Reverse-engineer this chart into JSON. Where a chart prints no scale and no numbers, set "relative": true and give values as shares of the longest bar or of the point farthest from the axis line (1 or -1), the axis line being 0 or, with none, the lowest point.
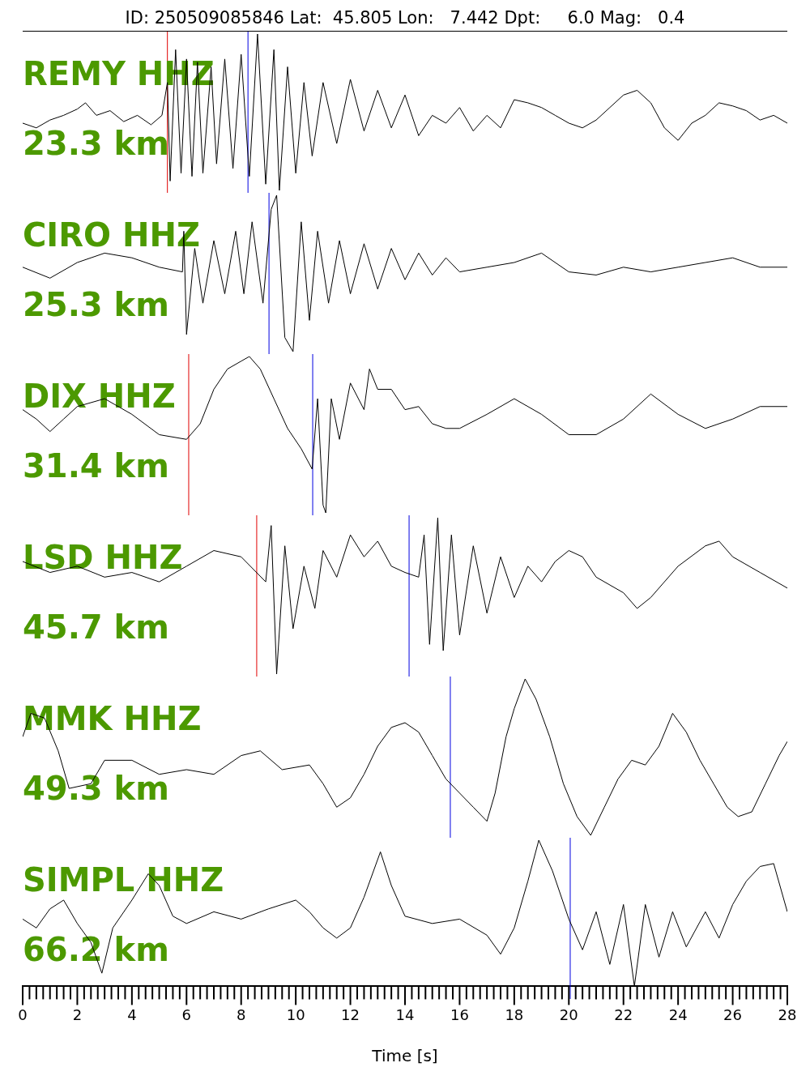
{
  "chart_data": [
    {
      "type": "line",
      "title": "ID: 250509085846 Lat:  45.805 Lon:   7.442 Dpt:     6.0 Mag:   0.4",
      "relative": true,
      "color": "#000000",
      "xlim": [
        0,
        28
      ],
      "tick_labels": false,
      "annotations": [
        "REMY HHZ",
        "23.3 km"
      ],
      "ref_lines": [
        {
          "axis": "x",
          "value": 5.3,
          "color": "#e00000"
        },
        {
          "axis": "x",
          "value": 8.25,
          "color": "#0000e0"
        }
      ],
      "x": [
        0,
        0.5,
        1,
        1.5,
        2,
        2.3,
        2.7,
        3.2,
        3.7,
        4.2,
        4.7,
        5.1,
        5.3,
        5.4,
        5.6,
        5.8,
        6.0,
        6.2,
        6.4,
        6.6,
        6.9,
        7.1,
        7.4,
        7.7,
        8.0,
        8.3,
        8.6,
        8.9,
        9.2,
        9.4,
        9.7,
        10.0,
        10.3,
        10.6,
        11,
        11.5,
        12,
        12.5,
        13,
        13.5,
        14,
        14.5,
        15,
        15.5,
        16,
        16.5,
        17,
        17.5,
        18,
        18.5,
        19,
        19.5,
        20,
        20.5,
        21,
        21.5,
        22,
        22.5,
        23,
        23.5,
        24,
        24.5,
        25,
        25.5,
        26,
        26.5,
        27,
        27.5,
        28
      ],
      "values": [
        0.43,
        0.4,
        0.45,
        0.48,
        0.52,
        0.56,
        0.48,
        0.51,
        0.44,
        0.48,
        0.42,
        0.48,
        0.69,
        0.06,
        0.9,
        0.11,
        0.84,
        0.09,
        0.82,
        0.11,
        0.79,
        0.17,
        0.84,
        0.14,
        0.87,
        0.09,
        1,
        0.04,
        0.9,
        0,
        0.79,
        0.11,
        0.69,
        0.22,
        0.69,
        0.3,
        0.71,
        0.38,
        0.64,
        0.4,
        0.61,
        0.35,
        0.48,
        0.43,
        0.53,
        0.38,
        0.48,
        0.4,
        0.58,
        0.56,
        0.53,
        0.48,
        0.43,
        0.4,
        0.45,
        0.53,
        0.61,
        0.64,
        0.56,
        0.4,
        0.32,
        0.43,
        0.48,
        0.56,
        0.54,
        0.51,
        0.45,
        0.48,
        0.43
      ]
    },
    {
      "type": "line",
      "relative": true,
      "color": "#000000",
      "xlim": [
        0,
        28
      ],
      "tick_labels": false,
      "annotations": [
        "CIRO HHZ",
        "25.3 km"
      ],
      "ref_lines": [
        {
          "axis": "x",
          "value": 9.02,
          "color": "#0000e0"
        }
      ],
      "x": [
        0,
        1,
        2,
        3,
        4,
        5,
        5.85,
        5.9,
        6.0,
        6.3,
        6.6,
        7,
        7.4,
        7.8,
        8.1,
        8.4,
        8.8,
        9.1,
        9.3,
        9.6,
        9.9,
        10.2,
        10.5,
        10.8,
        11.2,
        11.6,
        12,
        12.5,
        13,
        13.5,
        14,
        14.5,
        15,
        15.5,
        16,
        17,
        18,
        19,
        20,
        21,
        22,
        23,
        24,
        25,
        26,
        27,
        28
      ],
      "values": [
        0.54,
        0.47,
        0.57,
        0.63,
        0.6,
        0.54,
        0.51,
        0.77,
        0.11,
        0.66,
        0.31,
        0.71,
        0.37,
        0.77,
        0.37,
        0.83,
        0.31,
        0.91,
        1,
        0.09,
        0,
        0.83,
        0.2,
        0.77,
        0.31,
        0.71,
        0.37,
        0.69,
        0.4,
        0.66,
        0.46,
        0.63,
        0.49,
        0.6,
        0.51,
        0.54,
        0.57,
        0.63,
        0.51,
        0.49,
        0.54,
        0.51,
        0.54,
        0.57,
        0.6,
        0.54,
        0.54
      ]
    },
    {
      "type": "line",
      "relative": true,
      "color": "#000000",
      "xlim": [
        0,
        28
      ],
      "tick_labels": false,
      "annotations": [
        "DIX HHZ",
        "31.4 km"
      ],
      "ref_lines": [
        {
          "axis": "x",
          "value": 6.08,
          "color": "#e00000"
        },
        {
          "axis": "x",
          "value": 10.62,
          "color": "#0000e0"
        }
      ],
      "x": [
        0,
        0.5,
        1,
        1.5,
        2,
        3,
        4,
        5,
        6,
        6.5,
        7,
        7.5,
        8,
        8.3,
        8.7,
        9.2,
        9.7,
        10.2,
        10.6,
        10.8,
        11.0,
        11.1,
        11.3,
        11.6,
        12,
        12.5,
        12.7,
        13,
        13.5,
        14,
        14.5,
        15,
        15.5,
        16,
        17,
        18,
        19,
        20,
        21,
        22,
        23,
        24,
        25,
        26,
        27,
        28
      ],
      "values": [
        0.66,
        0.6,
        0.52,
        0.6,
        0.68,
        0.73,
        0.63,
        0.5,
        0.47,
        0.57,
        0.79,
        0.92,
        0.97,
        1,
        0.92,
        0.73,
        0.54,
        0.41,
        0.28,
        0.73,
        0.05,
        0,
        0.73,
        0.47,
        0.83,
        0.66,
        0.92,
        0.79,
        0.79,
        0.66,
        0.68,
        0.57,
        0.54,
        0.54,
        0.63,
        0.73,
        0.63,
        0.5,
        0.5,
        0.6,
        0.76,
        0.63,
        0.54,
        0.6,
        0.68,
        0.68
      ]
    },
    {
      "type": "line",
      "relative": true,
      "color": "#000000",
      "xlim": [
        0,
        28
      ],
      "tick_labels": false,
      "annotations": [
        "LSD HHZ",
        "45.7 km"
      ],
      "ref_lines": [
        {
          "axis": "x",
          "value": 8.57,
          "color": "#e00000"
        },
        {
          "axis": "x",
          "value": 14.15,
          "color": "#0000e0"
        }
      ],
      "x": [
        0,
        1,
        2,
        3,
        4,
        5,
        6,
        7,
        8,
        8.9,
        9.1,
        9.3,
        9.6,
        9.9,
        10.3,
        10.7,
        11,
        11.5,
        12,
        12.5,
        13,
        13.5,
        14,
        14.5,
        14.7,
        14.9,
        15.2,
        15.4,
        15.7,
        16,
        16.5,
        17,
        17.5,
        18,
        18.5,
        19,
        19.5,
        20,
        20.5,
        21,
        22,
        22.5,
        23,
        24,
        25,
        25.5,
        26,
        27,
        28
      ],
      "values": [
        0.72,
        0.65,
        0.69,
        0.62,
        0.65,
        0.59,
        0.69,
        0.79,
        0.75,
        0.59,
        0.95,
        0,
        0.82,
        0.29,
        0.69,
        0.42,
        0.79,
        0.62,
        0.89,
        0.75,
        0.85,
        0.69,
        0.65,
        0.62,
        0.89,
        0.19,
        1,
        0.15,
        0.89,
        0.25,
        0.82,
        0.39,
        0.75,
        0.49,
        0.69,
        0.59,
        0.72,
        0.79,
        0.75,
        0.62,
        0.52,
        0.42,
        0.49,
        0.69,
        0.82,
        0.85,
        0.75,
        0.65,
        0.55
      ]
    },
    {
      "type": "line",
      "relative": true,
      "color": "#000000",
      "xlim": [
        0,
        28
      ],
      "tick_labels": false,
      "annotations": [
        "MMK HHZ",
        "49.3 km"
      ],
      "ref_lines": [
        {
          "axis": "x",
          "value": 15.66,
          "color": "#0000e0"
        }
      ],
      "x": [
        0,
        0.3,
        0.8,
        1.3,
        1.7,
        2.5,
        3,
        4,
        5,
        6,
        7,
        8,
        8.7,
        9.5,
        10.5,
        11,
        11.5,
        12,
        12.5,
        13,
        13.5,
        14,
        14.5,
        15,
        15.5,
        16,
        16.5,
        17,
        17.3,
        17.7,
        18,
        18.4,
        18.8,
        19.3,
        19.8,
        20.3,
        20.8,
        21.3,
        21.8,
        22.3,
        22.8,
        23.3,
        23.8,
        24.3,
        24.8,
        25.3,
        25.8,
        26.2,
        26.7,
        27.2,
        27.7,
        28
      ],
      "values": [
        0.63,
        0.78,
        0.75,
        0.54,
        0.3,
        0.33,
        0.48,
        0.48,
        0.39,
        0.42,
        0.39,
        0.51,
        0.54,
        0.42,
        0.45,
        0.33,
        0.18,
        0.24,
        0.39,
        0.57,
        0.69,
        0.72,
        0.66,
        0.51,
        0.36,
        0.27,
        0.18,
        0.09,
        0.27,
        0.63,
        0.81,
        1,
        0.87,
        0.63,
        0.33,
        0.12,
        0,
        0.18,
        0.36,
        0.48,
        0.45,
        0.57,
        0.78,
        0.66,
        0.48,
        0.33,
        0.18,
        0.12,
        0.15,
        0.33,
        0.51,
        0.6
      ]
    },
    {
      "type": "line",
      "relative": true,
      "color": "#000000",
      "xlim": [
        0,
        28
      ],
      "tick_labels": "x",
      "xlabel": "Time [s]",
      "annotations": [
        "SIMPL HHZ",
        "66.2 km"
      ],
      "ref_lines": [
        {
          "axis": "x",
          "value": 20.05,
          "color": "#0000e0"
        }
      ],
      "x": [
        0,
        0.5,
        1,
        1.5,
        2,
        2.5,
        2.9,
        3.3,
        4,
        4.6,
        5,
        5.5,
        6,
        7,
        8,
        9,
        10,
        10.5,
        11,
        11.5,
        12,
        12.5,
        13.1,
        13.5,
        14,
        15,
        16,
        17,
        17.5,
        18,
        18.5,
        18.9,
        19.4,
        20,
        20.5,
        21,
        21.5,
        22,
        22.4,
        22.8,
        23.3,
        23.8,
        24.3,
        25,
        25.5,
        26,
        26.5,
        27,
        27.5,
        28
      ],
      "values": [
        0.46,
        0.4,
        0.53,
        0.59,
        0.43,
        0.3,
        0.09,
        0.4,
        0.59,
        0.77,
        0.69,
        0.48,
        0.43,
        0.51,
        0.46,
        0.53,
        0.59,
        0.51,
        0.4,
        0.33,
        0.4,
        0.61,
        0.92,
        0.69,
        0.48,
        0.43,
        0.46,
        0.35,
        0.22,
        0.4,
        0.72,
        1,
        0.79,
        0.46,
        0.25,
        0.51,
        0.15,
        0.56,
        0,
        0.56,
        0.2,
        0.51,
        0.27,
        0.51,
        0.33,
        0.56,
        0.72,
        0.82,
        0.84,
        0.51
      ],
      "xticks": [
        0,
        {
          "value": 0.25,
          "label": null
        },
        {
          "value": 0.5,
          "label": null
        },
        {
          "value": 0.75,
          "label": null
        },
        {
          "value": 1,
          "label": null
        },
        {
          "value": 1.25,
          "label": null
        },
        {
          "value": 1.5,
          "label": null
        },
        {
          "value": 1.75,
          "label": null
        },
        2,
        {
          "value": 2.25,
          "label": null
        },
        {
          "value": 2.5,
          "label": null
        },
        {
          "value": 2.75,
          "label": null
        },
        {
          "value": 3,
          "label": null
        },
        {
          "value": 3.25,
          "label": null
        },
        {
          "value": 3.5,
          "label": null
        },
        {
          "value": 3.75,
          "label": null
        },
        4,
        {
          "value": 4.25,
          "label": null
        },
        {
          "value": 4.5,
          "label": null
        },
        {
          "value": 4.75,
          "label": null
        },
        {
          "value": 5,
          "label": null
        },
        {
          "value": 5.25,
          "label": null
        },
        {
          "value": 5.5,
          "label": null
        },
        {
          "value": 5.75,
          "label": null
        },
        6,
        {
          "value": 6.25,
          "label": null
        },
        {
          "value": 6.5,
          "label": null
        },
        {
          "value": 6.75,
          "label": null
        },
        {
          "value": 7,
          "label": null
        },
        {
          "value": 7.25,
          "label": null
        },
        {
          "value": 7.5,
          "label": null
        },
        {
          "value": 7.75,
          "label": null
        },
        8,
        {
          "value": 8.25,
          "label": null
        },
        {
          "value": 8.5,
          "label": null
        },
        {
          "value": 8.75,
          "label": null
        },
        {
          "value": 9,
          "label": null
        },
        {
          "value": 9.25,
          "label": null
        },
        {
          "value": 9.5,
          "label": null
        },
        {
          "value": 9.75,
          "label": null
        },
        10,
        {
          "value": 10.25,
          "label": null
        },
        {
          "value": 10.5,
          "label": null
        },
        {
          "value": 10.75,
          "label": null
        },
        {
          "value": 11,
          "label": null
        },
        {
          "value": 11.25,
          "label": null
        },
        {
          "value": 11.5,
          "label": null
        },
        {
          "value": 11.75,
          "label": null
        },
        12,
        {
          "value": 12.25,
          "label": null
        },
        {
          "value": 12.5,
          "label": null
        },
        {
          "value": 12.75,
          "label": null
        },
        {
          "value": 13,
          "label": null
        },
        {
          "value": 13.25,
          "label": null
        },
        {
          "value": 13.5,
          "label": null
        },
        {
          "value": 13.75,
          "label": null
        },
        14,
        {
          "value": 14.25,
          "label": null
        },
        {
          "value": 14.5,
          "label": null
        },
        {
          "value": 14.75,
          "label": null
        },
        {
          "value": 15,
          "label": null
        },
        {
          "value": 15.25,
          "label": null
        },
        {
          "value": 15.5,
          "label": null
        },
        {
          "value": 15.75,
          "label": null
        },
        16,
        {
          "value": 16.25,
          "label": null
        },
        {
          "value": 16.5,
          "label": null
        },
        {
          "value": 16.75,
          "label": null
        },
        {
          "value": 17,
          "label": null
        },
        {
          "value": 17.25,
          "label": null
        },
        {
          "value": 17.5,
          "label": null
        },
        {
          "value": 17.75,
          "label": null
        },
        18,
        {
          "value": 18.25,
          "label": null
        },
        {
          "value": 18.5,
          "label": null
        },
        {
          "value": 18.75,
          "label": null
        },
        {
          "value": 19,
          "label": null
        },
        {
          "value": 19.25,
          "label": null
        },
        {
          "value": 19.5,
          "label": null
        },
        {
          "value": 19.75,
          "label": null
        },
        20,
        {
          "value": 20.25,
          "label": null
        },
        {
          "value": 20.5,
          "label": null
        },
        {
          "value": 20.75,
          "label": null
        },
        {
          "value": 21,
          "label": null
        },
        {
          "value": 21.25,
          "label": null
        },
        {
          "value": 21.5,
          "label": null
        },
        {
          "value": 21.75,
          "label": null
        },
        22,
        {
          "value": 22.25,
          "label": null
        },
        {
          "value": 22.5,
          "label": null
        },
        {
          "value": 22.75,
          "label": null
        },
        {
          "value": 23,
          "label": null
        },
        {
          "value": 23.25,
          "label": null
        },
        {
          "value": 23.5,
          "label": null
        },
        {
          "value": 23.75,
          "label": null
        },
        24,
        {
          "value": 24.25,
          "label": null
        },
        {
          "value": 24.5,
          "label": null
        },
        {
          "value": 24.75,
          "label": null
        },
        {
          "value": 25,
          "label": null
        },
        {
          "value": 25.25,
          "label": null
        },
        {
          "value": 25.5,
          "label": null
        },
        {
          "value": 25.75,
          "label": null
        },
        26,
        {
          "value": 26.25,
          "label": null
        },
        {
          "value": 26.5,
          "label": null
        },
        {
          "value": 26.75,
          "label": null
        },
        {
          "value": 27,
          "label": null
        },
        {
          "value": 27.25,
          "label": null
        },
        {
          "value": 27.5,
          "label": null
        },
        {
          "value": 27.75,
          "label": null
        },
        28
      ]
    }
  ]
}
